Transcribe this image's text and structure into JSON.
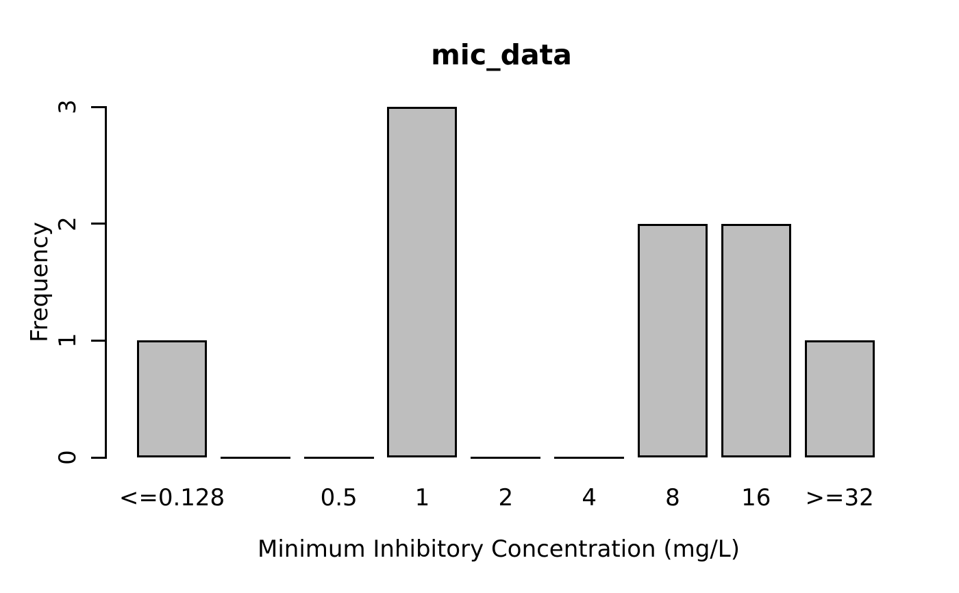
{
  "chart_data": {
    "type": "bar",
    "title": "mic_data",
    "xlabel": "Minimum Inhibitory Concentration (mg/L)",
    "ylabel": "Frequency",
    "categories": [
      "<=0.128",
      "",
      "0.5",
      "1",
      "2",
      "4",
      "8",
      "16",
      ">=32"
    ],
    "values": [
      1,
      0,
      0,
      3,
      0,
      0,
      2,
      2,
      1
    ],
    "yticks": [
      0,
      1,
      2,
      3
    ],
    "ylim": [
      0,
      3
    ],
    "grid": false,
    "legend": null,
    "colors": {
      "bar_fill": "#BEBEBE",
      "bar_border": "#000000",
      "axis": "#000000",
      "text": "#000000",
      "background": "#FFFFFF"
    }
  }
}
